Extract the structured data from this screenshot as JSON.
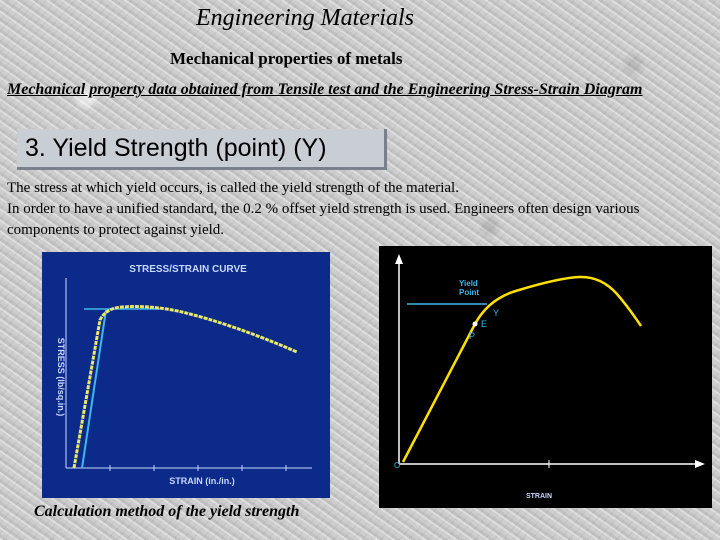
{
  "header": {
    "title": "Engineering Materials",
    "subtitle": "Mechanical properties of metals"
  },
  "intro": "Mechanical property data obtained from Tensile test and the Engineering Stress-Strain Diagram",
  "section": {
    "heading": "3.  Yield Strength (point)  (Y)"
  },
  "body": {
    "line1": "The stress at which yield occurs, is called the yield strength of the material.",
    "line2": "In order to have a  unified standard, the 0.2 % offset yield strength is used. Engineers often design various components to protect against yield."
  },
  "figure_left": {
    "title": "STRESS/STRAIN CURVE",
    "xlabel": "STRAIN (in./in.)",
    "ylabel": "STRESS (lb/sq.in.)",
    "colors": {
      "background": "#0b2a8a",
      "curve": "#e8e86a",
      "offset_line": "#3fb7e8",
      "text": "#c9d8ff"
    }
  },
  "figure_right": {
    "yield_label": "Yield\nPoint",
    "point_labels": {
      "y": "Y",
      "e": "E",
      "p": "P",
      "origin": "O"
    },
    "xlabel": "STRAIN",
    "colors": {
      "background": "#000000",
      "axes": "#ffffff",
      "curve": "#ffe000",
      "yield_line": "#3fb7e8",
      "labels": "#3fb7e8"
    }
  },
  "caption": "Calculation method of the yield strength"
}
